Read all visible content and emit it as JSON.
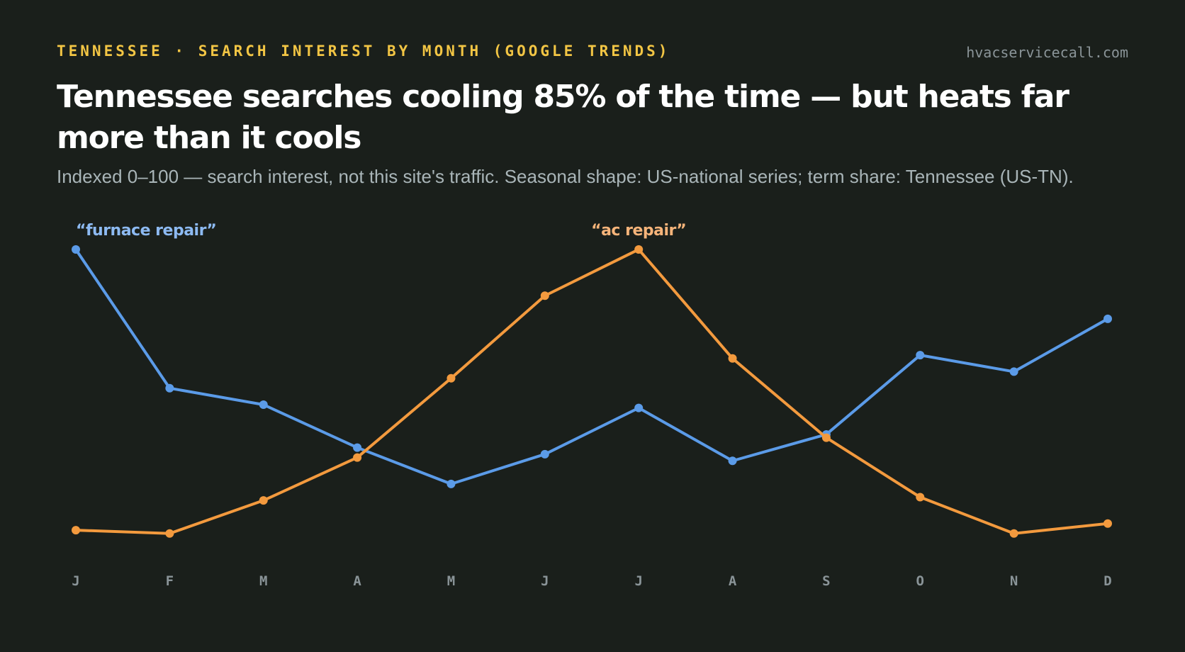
{
  "header": {
    "kicker": "TENNESSEE · SEARCH INTEREST BY MONTH (GOOGLE TRENDS)",
    "site": "hvacservicecall.com",
    "title": "Tennessee searches cooling 85% of the time — but heats far more than it cools",
    "subtitle": "Indexed 0–100 — search interest, not this site's traffic. Seasonal shape: US-national series; term share: Tennessee (US-TN)."
  },
  "chart_data": {
    "type": "line",
    "categories": [
      "J",
      "F",
      "M",
      "A",
      "M",
      "J",
      "J",
      "A",
      "S",
      "O",
      "N",
      "D"
    ],
    "ylim": [
      0,
      100
    ],
    "grid": false,
    "legend": "direct labels",
    "series": [
      {
        "name": "“furnace repair”",
        "color": "#5b9be8",
        "label_color": "#8dbaf2",
        "values": [
          100,
          58,
          53,
          40,
          29,
          38,
          52,
          36,
          44,
          68,
          63,
          79
        ]
      },
      {
        "name": "“ac repair”",
        "color": "#f39a3e",
        "label_color": "#f6b47a",
        "values": [
          15,
          14,
          24,
          37,
          61,
          86,
          100,
          67,
          43,
          25,
          14,
          17
        ]
      }
    ]
  }
}
